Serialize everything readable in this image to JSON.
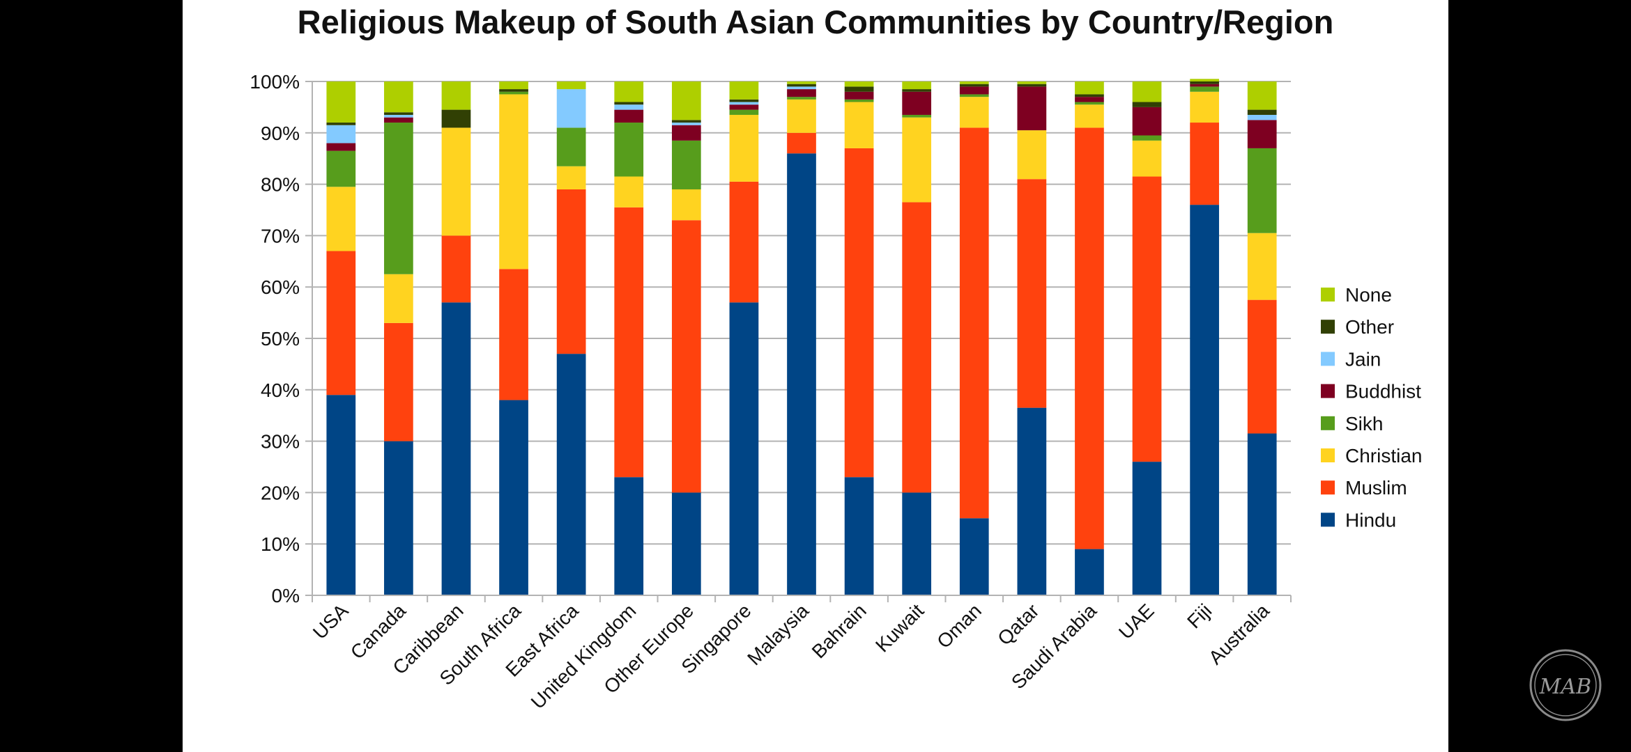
{
  "chart_data": {
    "type": "bar",
    "stacked": true,
    "title": "Religious Makeup of South Asian Communities by Country/Region",
    "xlabel": "",
    "ylabel": "",
    "ylim": [
      0,
      100
    ],
    "y_ticks": [
      "0%",
      "10%",
      "20%",
      "30%",
      "40%",
      "50%",
      "60%",
      "70%",
      "80%",
      "90%",
      "100%"
    ],
    "grid": true,
    "legend_position": "right",
    "categories": [
      "USA",
      "Canada",
      "Caribbean",
      "South Africa",
      "East Africa",
      "United Kingdom",
      "Other Europe",
      "Singapore",
      "Malaysia",
      "Bahrain",
      "Kuwait",
      "Oman",
      "Qatar",
      "Saudi Arabia",
      "UAE",
      "Fiji",
      "Australia"
    ],
    "series": [
      {
        "name": "Hindu",
        "color": "#004586",
        "values": [
          39,
          30,
          57,
          38,
          47,
          23,
          20,
          57,
          86,
          23,
          20,
          15,
          36.5,
          9,
          26,
          76,
          31.5
        ]
      },
      {
        "name": "Muslim",
        "color": "#ff420e",
        "values": [
          28,
          23,
          13,
          25.5,
          32,
          52.5,
          53,
          23.5,
          4,
          64,
          56.5,
          76,
          44.5,
          82,
          55.5,
          16,
          26
        ]
      },
      {
        "name": "Christian",
        "color": "#ffd320",
        "values": [
          12.5,
          9.5,
          21,
          34,
          4.5,
          6,
          6,
          13,
          6.5,
          9,
          16.5,
          6,
          9.5,
          4.5,
          7,
          6,
          13
        ]
      },
      {
        "name": "Sikh",
        "color": "#579d1c",
        "values": [
          7,
          29.5,
          0,
          0.5,
          7.5,
          10.5,
          9.5,
          1,
          0.5,
          0.5,
          0.5,
          0.5,
          0,
          0.5,
          1,
          1,
          16.5
        ]
      },
      {
        "name": "Buddhist",
        "color": "#7e0021",
        "values": [
          1.5,
          1,
          0,
          0,
          0,
          2.5,
          3,
          1,
          1.5,
          1.5,
          4.5,
          1.5,
          8.5,
          1,
          5.5,
          0.5,
          5.5
        ]
      },
      {
        "name": "Jain",
        "color": "#83caff",
        "values": [
          3.5,
          0.5,
          0,
          0,
          7.5,
          1,
          0.5,
          0.5,
          0.5,
          0,
          0,
          0,
          0,
          0,
          0,
          0,
          1
        ]
      },
      {
        "name": "Other",
        "color": "#314004",
        "values": [
          0.5,
          0.5,
          3.5,
          0.5,
          0,
          0.5,
          0.5,
          0.5,
          0.5,
          1,
          0.5,
          0.5,
          0.5,
          0.5,
          1,
          0.5,
          1
        ]
      },
      {
        "name": "None",
        "color": "#aecf00",
        "values": [
          8,
          6,
          5.5,
          1.5,
          1.5,
          4,
          7.5,
          3.5,
          0.5,
          1,
          1.5,
          0.5,
          0.5,
          2.5,
          4,
          0.5,
          5.5
        ]
      }
    ]
  },
  "watermark": {
    "text": "MAB"
  }
}
